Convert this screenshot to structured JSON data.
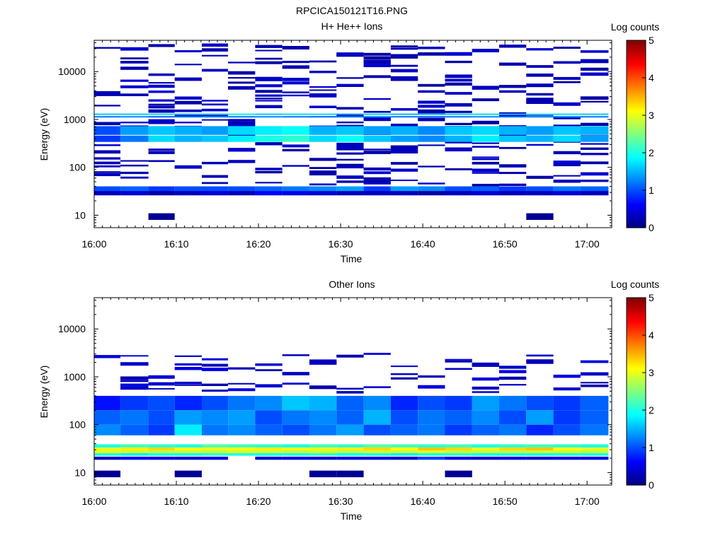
{
  "figure_title": "RPCICA150121T16.PNG",
  "colormap": [
    "#00007f",
    "#0000ff",
    "#0080ff",
    "#00ffff",
    "#80ff80",
    "#ffff00",
    "#ff8000",
    "#ff0000",
    "#7f0000"
  ],
  "chart_data": [
    {
      "type": "heatmap",
      "title": "H+ He++ Ions",
      "xlabel": "Time",
      "ylabel": "Energy (eV)",
      "x_ticks": [
        "16:00",
        "16:10",
        "16:20",
        "16:30",
        "16:40",
        "16:50",
        "17:00"
      ],
      "x_range_minutes": [
        0,
        63
      ],
      "y_scale": "log",
      "y_ticks": [
        "10",
        "100",
        "1000",
        "10000"
      ],
      "y_range": [
        5.5,
        45000
      ],
      "colorbar": {
        "label": "Log counts",
        "range": [
          0,
          5
        ],
        "ticks": [
          "0",
          "1",
          "2",
          "3",
          "4",
          "5"
        ]
      },
      "time_bins_minutes": [
        0,
        3.2,
        6.6,
        9.8,
        13.1,
        16.3,
        19.6,
        22.9,
        26.2,
        29.5,
        32.8,
        36.1,
        39.4,
        42.7,
        46.0,
        49.3,
        52.6,
        55.9,
        59.2,
        62.6
      ],
      "energy_bands": [
        {
          "e": 1300,
          "h": 60,
          "v": [
            1.6,
            1.6,
            1.7,
            1.6,
            1.6,
            1.8,
            1.6,
            1.7,
            1.7,
            1.4,
            1.7,
            1.5,
            1.6,
            1.6,
            1.7,
            1.6,
            1.8,
            1.7,
            1.6
          ]
        },
        {
          "e": 1150,
          "h": 50,
          "v": [
            1.2,
            1.3,
            1.1,
            1.2,
            1.3,
            1.2,
            1.3,
            1.2,
            1.1,
            1.2,
            1.3,
            1.2,
            1.1,
            1.2,
            1.3,
            1.2,
            1.2,
            1.3,
            1.2
          ]
        },
        {
          "e": 600,
          "h": 250,
          "v": [
            1.0,
            1.4,
            1.6,
            1.5,
            1.4,
            1.7,
            1.8,
            1.9,
            1.5,
            1.6,
            1.4,
            1.5,
            1.3,
            1.6,
            1.7,
            1.5,
            1.4,
            1.6,
            1.5
          ]
        },
        {
          "e": 400,
          "h": 120,
          "v": [
            0.9,
            1.2,
            1.7,
            1.5,
            1.6,
            1.8,
            2.0,
            2.1,
            1.7,
            1.9,
            1.6,
            1.4,
            1.3,
            1.5,
            1.8,
            1.6,
            1.5,
            1.7,
            1.4
          ]
        },
        {
          "e": 34,
          "h": 12,
          "v": [
            1.0,
            1.1,
            0.9,
            1.0,
            1.0,
            1.0,
            1.1,
            1.2,
            1.3,
            1.4,
            0.9,
            1.4,
            1.3,
            1.0,
            1.1,
            0.9,
            1.0,
            1.2,
            1.1
          ]
        },
        {
          "e": 29,
          "h": 6,
          "v": [
            0.3,
            0.4,
            0.2,
            0.3,
            0.4,
            0.3,
            0.6,
            0.5,
            0.4,
            0.3,
            0.3,
            0.3,
            0.2,
            0.3,
            0.4,
            0.3,
            0.3,
            0.4,
            0.3
          ]
        },
        {
          "e": 9.5,
          "h": 3,
          "v": [
            null,
            null,
            0.1,
            null,
            null,
            null,
            null,
            null,
            null,
            null,
            null,
            null,
            null,
            null,
            null,
            null,
            0.1,
            null,
            null
          ]
        }
      ],
      "sparse_lines": {
        "e_min": 45,
        "e_max": 40000,
        "count": 32,
        "v": 0.3
      }
    },
    {
      "type": "heatmap",
      "title": "Other Ions",
      "xlabel": "Time",
      "ylabel": "Energy (eV)",
      "x_ticks": [
        "16:00",
        "16:10",
        "16:20",
        "16:30",
        "16:40",
        "16:50",
        "17:00"
      ],
      "x_range_minutes": [
        0,
        63
      ],
      "y_scale": "log",
      "y_ticks": [
        "10",
        "100",
        "1000",
        "10000"
      ],
      "y_range": [
        5.5,
        45000
      ],
      "colorbar": {
        "label": "Log counts",
        "range": [
          0,
          5
        ],
        "ticks": [
          "0",
          "1",
          "2",
          "3",
          "4",
          "5"
        ]
      },
      "time_bins_minutes": [
        0,
        3.2,
        6.6,
        9.8,
        13.1,
        16.3,
        19.6,
        22.9,
        26.2,
        29.5,
        32.8,
        36.1,
        39.4,
        42.7,
        46.0,
        49.3,
        52.6,
        55.9,
        59.2,
        62.6
      ],
      "energy_bands": [
        {
          "e": 300,
          "h": 200,
          "v": [
            0.7,
            0.9,
            1.0,
            0.8,
            1.0,
            1.2,
            1.3,
            1.6,
            1.5,
            1.1,
            1.3,
            0.8,
            1.0,
            0.9,
            1.4,
            1.2,
            1.0,
            0.9,
            1.1
          ]
        },
        {
          "e": 150,
          "h": 100,
          "v": [
            1.1,
            1.2,
            1.0,
            1.4,
            1.3,
            1.4,
            1.0,
            1.2,
            1.3,
            1.1,
            1.5,
            1.0,
            1.2,
            1.1,
            1.3,
            1.0,
            1.4,
            0.9,
            1.1
          ]
        },
        {
          "e": 80,
          "h": 40,
          "v": [
            1.3,
            1.1,
            0.9,
            1.8,
            1.2,
            1.3,
            1.1,
            1.0,
            1.2,
            1.4,
            1.0,
            1.1,
            1.2,
            0.9,
            1.1,
            1.2,
            0.8,
            1.0,
            1.2
          ]
        },
        {
          "e": 36,
          "h": 6,
          "v": [
            2.0,
            2.2,
            2.1,
            2.0,
            2.3,
            2.2,
            2.1,
            2.0,
            2.2,
            2.1,
            2.3,
            2.2,
            2.1,
            2.2,
            2.0,
            2.1,
            2.2,
            2.1,
            2.0
          ]
        },
        {
          "e": 31,
          "h": 5,
          "v": [
            3.0,
            3.2,
            3.3,
            3.1,
            3.0,
            3.1,
            3.2,
            3.1,
            3.0,
            3.2,
            3.3,
            3.1,
            3.4,
            3.3,
            3.0,
            3.3,
            3.4,
            3.1,
            3.0
          ]
        },
        {
          "e": 27,
          "h": 4,
          "v": [
            3.0,
            2.9,
            2.8,
            2.9,
            2.8,
            2.9,
            2.9,
            2.8,
            2.9,
            2.8,
            2.9,
            2.9,
            3.0,
            2.8,
            2.9,
            2.8,
            2.9,
            2.9,
            2.8
          ]
        },
        {
          "e": 24,
          "h": 3,
          "v": [
            2.0,
            1.8,
            2.0,
            1.9,
            2.1,
            2.0,
            1.9,
            2.0,
            2.1,
            1.9,
            2.0,
            1.8,
            2.0,
            2.1,
            1.9,
            2.0,
            1.9,
            2.0,
            2.0
          ]
        },
        {
          "e": 20,
          "h": 3,
          "v": [
            0.4,
            0.6,
            0.5,
            0.4,
            0.5,
            null,
            0.4,
            0.5,
            0.4,
            0.5,
            0.5,
            0.4,
            0.9,
            0.5,
            0.4,
            0.5,
            0.4,
            0.5,
            0.5
          ]
        },
        {
          "e": 9.5,
          "h": 3,
          "v": [
            0.1,
            null,
            null,
            0.1,
            null,
            null,
            null,
            null,
            0.1,
            0.1,
            null,
            null,
            null,
            0.1,
            null,
            null,
            null,
            null,
            null
          ]
        }
      ],
      "sparse_lines": {
        "e_min": 500,
        "e_max": 3200,
        "count": 8,
        "v": 0.35
      }
    }
  ]
}
